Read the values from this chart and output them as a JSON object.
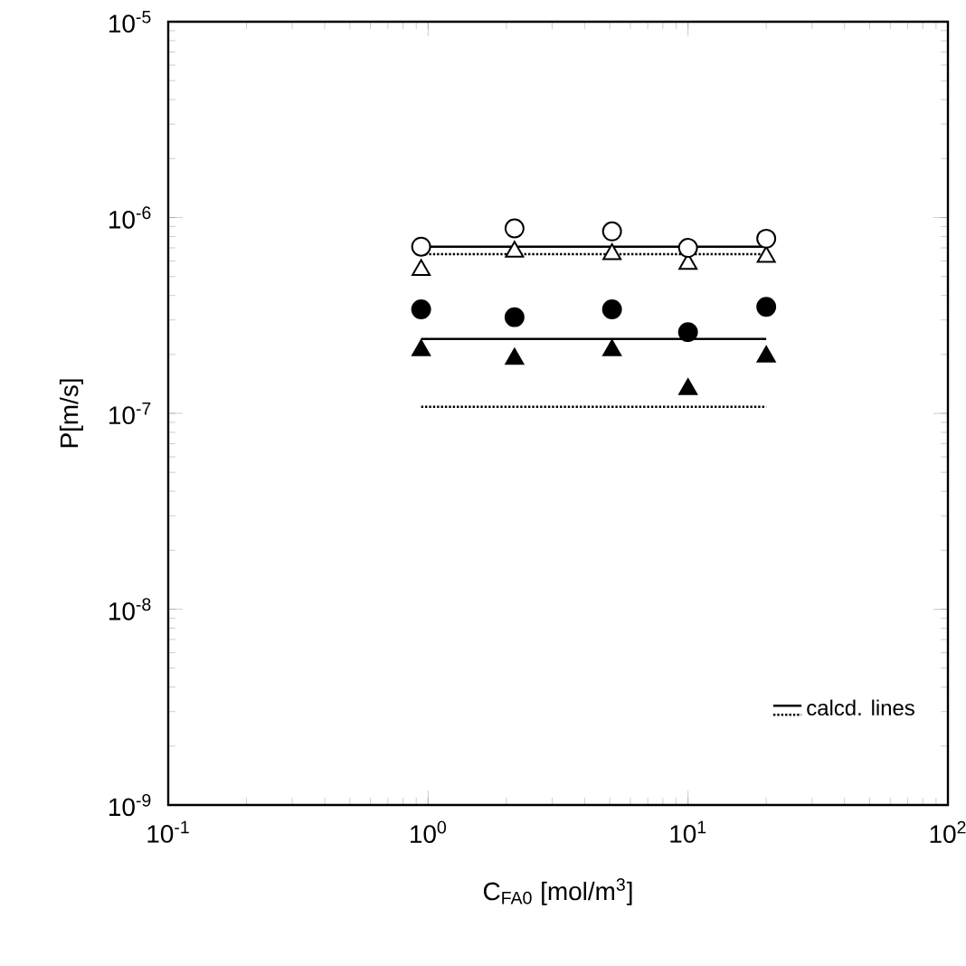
{
  "chart_data": {
    "type": "scatter",
    "xlabel": "C$_{FA0}$ [mol/m$^{3}$]",
    "ylabel": "P[m/s]",
    "log": "xy",
    "legend": "bottom right",
    "xlim": [
      0.1,
      100
    ],
    "ylim": [
      1e-09,
      1e-05
    ],
    "xticks": [
      {
        "value": 0.1,
        "label": "10$^{-1}$"
      },
      {
        "value": 1,
        "label": "10$^{0}$"
      },
      {
        "value": 10,
        "label": "10$^{1}$"
      },
      {
        "value": 100,
        "label": "10$^{2}$"
      }
    ],
    "yticks": [
      {
        "value": 1e-09,
        "label": "10$^{-9}$"
      },
      {
        "value": 1e-08,
        "label": "10$^{-8}$"
      },
      {
        "value": 1e-07,
        "label": "10$^{-7}$"
      },
      {
        "value": 1e-06,
        "label": "10$^{-6}$"
      },
      {
        "value": 1e-05,
        "label": "10$^{-5}$"
      }
    ],
    "x": [
      0.94,
      2.15,
      5.1,
      10,
      20
    ],
    "series": [
      {
        "type": "line",
        "name": "calcd. lines",
        "values": [
          7.1e-07,
          7.1e-07,
          7.1e-07,
          7.1e-07,
          7.1e-07
        ],
        "color": "#000000",
        "line_style": "solid",
        "marker": "none"
      },
      {
        "type": "line",
        "values": [
          6.5e-07,
          6.5e-07,
          6.5e-07,
          6.5e-07,
          6.5e-07
        ],
        "color": "#000000",
        "line_style": "dotted",
        "marker": "none"
      },
      {
        "type": "line",
        "values": [
          2.4e-07,
          2.4e-07,
          2.4e-07,
          2.4e-07,
          2.4e-07
        ],
        "color": "#000000",
        "line_style": "solid",
        "marker": "none"
      },
      {
        "type": "line",
        "values": [
          1.08e-07,
          1.08e-07,
          1.08e-07,
          1.08e-07,
          1.08e-07
        ],
        "color": "#000000",
        "line_style": "dotted",
        "marker": "none"
      },
      {
        "values": [
          5.4e-07,
          6.7e-07,
          6.5e-07,
          5.8e-07,
          6.3e-07
        ],
        "color": "#ffffff",
        "marker": "triangle"
      },
      {
        "values": [
          7.1e-07,
          8.8e-07,
          8.5e-07,
          7e-07,
          7.8e-07
        ],
        "color": "#ffffff",
        "marker": "circle"
      },
      {
        "values": [
          2.1e-07,
          1.9e-07,
          2.1e-07,
          1.33e-07,
          1.95e-07
        ],
        "color": "#000000",
        "marker": "triangle"
      },
      {
        "values": [
          3.4e-07,
          3.1e-07,
          3.4e-07,
          2.6e-07,
          3.5e-07
        ],
        "color": "#000000",
        "marker": "circle"
      }
    ]
  }
}
